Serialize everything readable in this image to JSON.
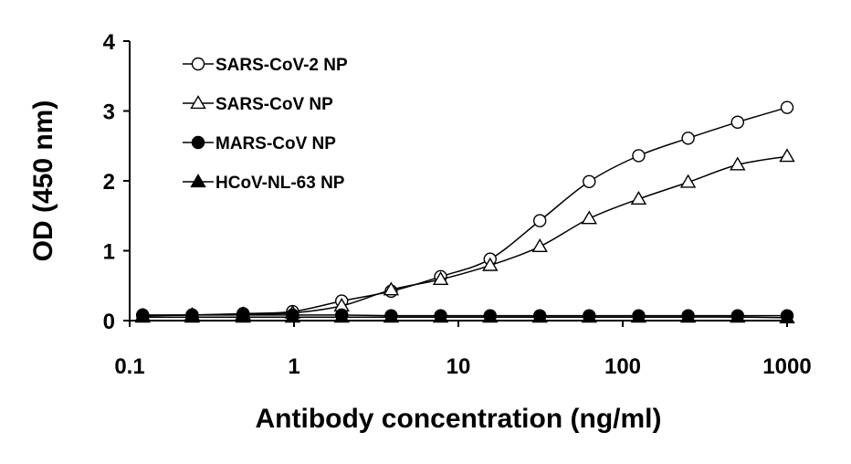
{
  "chart_data": {
    "type": "line",
    "title": "",
    "xlabel": "Antibody concentration (ng/ml)",
    "ylabel": "OD (450 nm)",
    "x_scale": "log",
    "xlim": [
      0.1,
      1000
    ],
    "ylim": [
      0,
      4
    ],
    "x_ticks": [
      0.1,
      1,
      10,
      100,
      1000
    ],
    "x_tick_labels": [
      "0.1",
      "1",
      "10",
      "100",
      "1000"
    ],
    "y_ticks": [
      0,
      1,
      2,
      3,
      4
    ],
    "y_tick_labels": [
      "0",
      "1",
      "2",
      "3",
      "4"
    ],
    "grid": false,
    "legend_position": "top-left",
    "x": [
      0.12,
      0.24,
      0.49,
      0.98,
      1.95,
      3.9,
      7.8,
      15.6,
      31.3,
      62.5,
      125,
      250,
      500,
      1000
    ],
    "series": [
      {
        "name": "SARS-CoV-2 NP",
        "marker": "circle-open",
        "values": [
          0.07,
          0.08,
          0.1,
          0.13,
          0.28,
          0.42,
          0.63,
          0.88,
          1.43,
          1.99,
          2.36,
          2.61,
          2.84,
          3.05
        ]
      },
      {
        "name": "SARS-CoV NP",
        "marker": "triangle-open",
        "values": [
          0.07,
          0.08,
          0.09,
          0.11,
          0.21,
          0.44,
          0.59,
          0.79,
          1.06,
          1.46,
          1.74,
          1.98,
          2.23,
          2.35
        ]
      },
      {
        "name": "MARS-CoV NP",
        "marker": "circle-filled",
        "values": [
          0.08,
          0.08,
          0.08,
          0.08,
          0.08,
          0.07,
          0.07,
          0.07,
          0.07,
          0.07,
          0.07,
          0.07,
          0.07,
          0.07
        ]
      },
      {
        "name": "HCoV-NL-63 NP",
        "marker": "triangle-filled",
        "values": [
          0.05,
          0.05,
          0.05,
          0.05,
          0.05,
          0.05,
          0.05,
          0.05,
          0.05,
          0.05,
          0.05,
          0.05,
          0.05,
          0.04
        ]
      }
    ]
  }
}
